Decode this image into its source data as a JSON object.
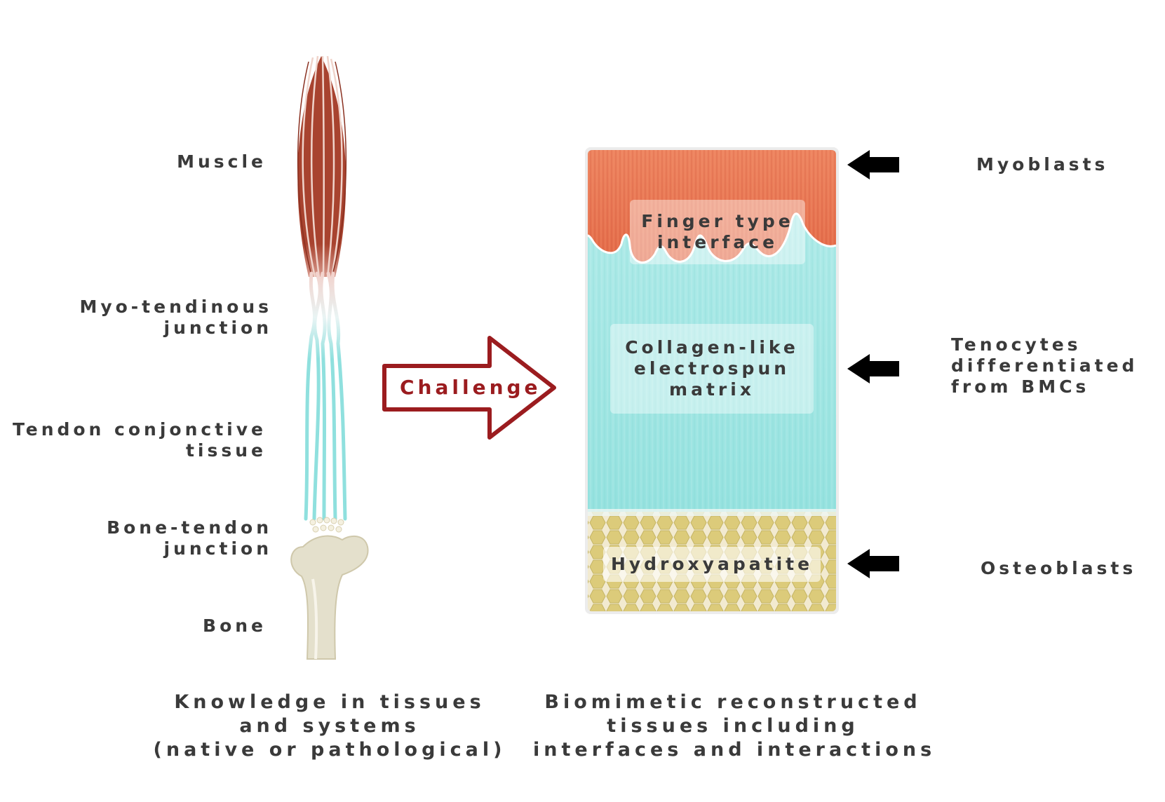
{
  "left_labels": {
    "muscle": "Muscle",
    "myo_tendinous": [
      "Myo-tendinous",
      "junction"
    ],
    "tendon": [
      "Tendon conjonctive",
      "tissue"
    ],
    "bone_tendon": [
      "Bone-tendon",
      "junction"
    ],
    "bone": "Bone"
  },
  "arrow": {
    "label": "Challenge",
    "color": "#9b1c1f"
  },
  "panel": {
    "finger": [
      "Finger type",
      "interface"
    ],
    "collagen": [
      "Collagen-like",
      "electrospun",
      "matrix"
    ],
    "hydroxy": "Hydroxyapatite"
  },
  "cells": {
    "myoblasts": "Myoblasts",
    "tenocytes": [
      "Tenocytes",
      "differentiated",
      "from BMCs"
    ],
    "osteoblasts": "Osteoblasts"
  },
  "captions": {
    "left": [
      "Knowledge in tissues",
      "and systems",
      "(native or pathological)"
    ],
    "right": [
      "Biomimetic reconstructed",
      "tissues including",
      "interfaces and interactions"
    ]
  },
  "colors": {
    "muscle": "#a8432f",
    "muscle_panel": "#ea7a55",
    "tendon": "#8fe0de",
    "bone": "#e4e0cc",
    "hydroxyapatite": "#dccb7a"
  },
  "icons": [
    "left-arrow-icon"
  ]
}
